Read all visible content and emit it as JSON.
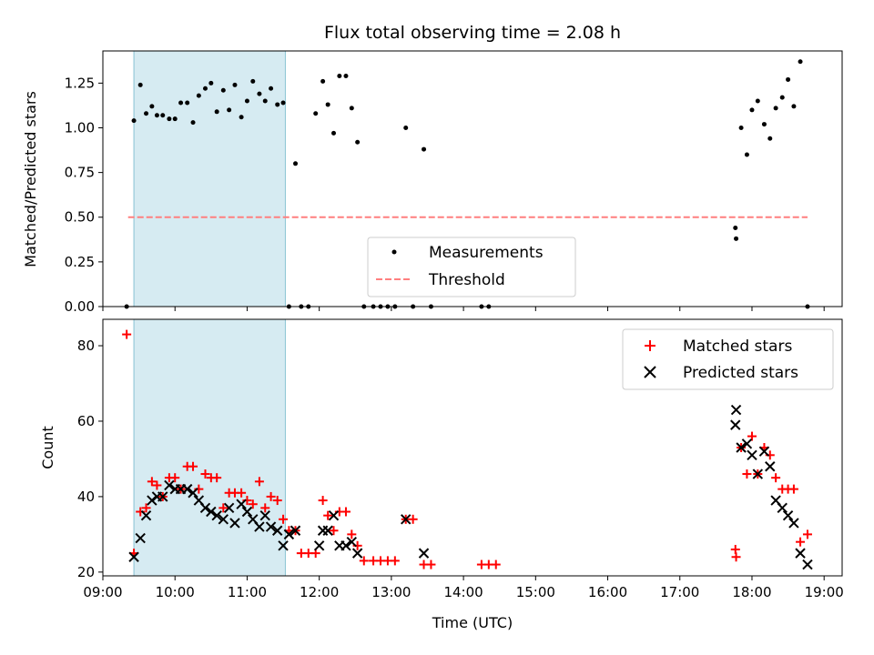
{
  "chart_data": [
    {
      "type": "scatter",
      "panel": "top",
      "title": "Flux total observing time = 2.08 h",
      "xlabel": "",
      "ylabel": "Matched/Predicted stars",
      "xlim": [
        9.0,
        19.25
      ],
      "ylim": [
        0.0,
        1.43
      ],
      "yticks": [
        0.0,
        0.25,
        0.5,
        0.75,
        1.0,
        1.25
      ],
      "ytick_labels": [
        "0.00",
        "0.25",
        "0.50",
        "0.75",
        "1.00",
        "1.25"
      ],
      "shaded_interval": [
        9.43,
        11.53
      ],
      "legend_position": "lower center",
      "series": [
        {
          "name": "Measurements",
          "marker": "dot",
          "color": "#000000",
          "points": [
            [
              9.33,
              0.0
            ],
            [
              9.43,
              1.04
            ],
            [
              9.52,
              1.24
            ],
            [
              9.6,
              1.08
            ],
            [
              9.68,
              1.12
            ],
            [
              9.75,
              1.07
            ],
            [
              9.83,
              1.07
            ],
            [
              9.92,
              1.05
            ],
            [
              10.0,
              1.05
            ],
            [
              10.08,
              1.14
            ],
            [
              10.17,
              1.14
            ],
            [
              10.25,
              1.03
            ],
            [
              10.33,
              1.18
            ],
            [
              10.42,
              1.22
            ],
            [
              10.5,
              1.25
            ],
            [
              10.58,
              1.09
            ],
            [
              10.67,
              1.21
            ],
            [
              10.75,
              1.1
            ],
            [
              10.83,
              1.24
            ],
            [
              10.92,
              1.06
            ],
            [
              11.0,
              1.15
            ],
            [
              11.08,
              1.26
            ],
            [
              11.17,
              1.19
            ],
            [
              11.25,
              1.15
            ],
            [
              11.33,
              1.22
            ],
            [
              11.42,
              1.13
            ],
            [
              11.5,
              1.14
            ],
            [
              11.58,
              0.0
            ],
            [
              11.67,
              0.8
            ],
            [
              11.75,
              0.0
            ],
            [
              11.85,
              0.0
            ],
            [
              11.95,
              1.08
            ],
            [
              12.05,
              1.26
            ],
            [
              12.12,
              1.13
            ],
            [
              12.2,
              0.97
            ],
            [
              12.28,
              1.29
            ],
            [
              12.37,
              1.29
            ],
            [
              12.45,
              1.11
            ],
            [
              12.53,
              0.92
            ],
            [
              12.62,
              0.0
            ],
            [
              12.75,
              0.0
            ],
            [
              12.85,
              0.0
            ],
            [
              12.95,
              0.0
            ],
            [
              13.05,
              0.0
            ],
            [
              13.2,
              1.0
            ],
            [
              13.3,
              0.0
            ],
            [
              13.45,
              0.88
            ],
            [
              13.55,
              0.0
            ],
            [
              14.25,
              0.0
            ],
            [
              14.35,
              0.0
            ],
            [
              17.77,
              0.44
            ],
            [
              17.78,
              0.38
            ],
            [
              17.85,
              1.0
            ],
            [
              17.93,
              0.85
            ],
            [
              18.0,
              1.1
            ],
            [
              18.08,
              1.15
            ],
            [
              18.17,
              1.02
            ],
            [
              18.25,
              0.94
            ],
            [
              18.33,
              1.11
            ],
            [
              18.42,
              1.17
            ],
            [
              18.5,
              1.27
            ],
            [
              18.58,
              1.12
            ],
            [
              18.67,
              1.37
            ],
            [
              18.77,
              0.0
            ]
          ]
        },
        {
          "name": "Threshold",
          "marker": "dashed-line",
          "color": "#ff7f7f",
          "x": [
            9.35,
            18.77
          ],
          "y": [
            0.5,
            0.5
          ]
        }
      ]
    },
    {
      "type": "scatter",
      "panel": "bottom",
      "title": "",
      "xlabel": "Time (UTC)",
      "ylabel": "Count",
      "xlim": [
        9.0,
        19.25
      ],
      "ylim": [
        19.0,
        87.0
      ],
      "yticks": [
        20,
        40,
        60,
        80
      ],
      "ytick_labels": [
        "20",
        "40",
        "60",
        "80"
      ],
      "xticks": [
        9,
        10,
        11,
        12,
        13,
        14,
        15,
        16,
        17,
        18,
        19
      ],
      "xtick_labels": [
        "09:00",
        "10:00",
        "11:00",
        "12:00",
        "13:00",
        "14:00",
        "15:00",
        "16:00",
        "17:00",
        "18:00",
        "19:00"
      ],
      "shaded_interval": [
        9.43,
        11.53
      ],
      "legend_position": "upper right",
      "series": [
        {
          "name": "Matched stars",
          "marker": "plus",
          "color": "#ff0000",
          "points": [
            [
              9.33,
              83
            ],
            [
              9.43,
              25
            ],
            [
              9.52,
              36
            ],
            [
              9.6,
              37
            ],
            [
              9.68,
              44
            ],
            [
              9.75,
              43
            ],
            [
              9.83,
              40
            ],
            [
              9.92,
              45
            ],
            [
              10.0,
              45
            ],
            [
              10.08,
              42
            ],
            [
              10.17,
              48
            ],
            [
              10.25,
              48
            ],
            [
              10.33,
              42
            ],
            [
              10.42,
              46
            ],
            [
              10.5,
              45
            ],
            [
              10.58,
              45
            ],
            [
              10.67,
              37
            ],
            [
              10.75,
              41
            ],
            [
              10.83,
              41
            ],
            [
              10.92,
              41
            ],
            [
              11.0,
              39
            ],
            [
              11.08,
              38
            ],
            [
              11.17,
              44
            ],
            [
              11.25,
              37
            ],
            [
              11.33,
              40
            ],
            [
              11.42,
              39
            ],
            [
              11.5,
              34
            ],
            [
              11.58,
              31
            ],
            [
              11.67,
              31
            ],
            [
              11.75,
              25
            ],
            [
              11.85,
              25
            ],
            [
              11.95,
              25
            ],
            [
              12.05,
              39
            ],
            [
              12.12,
              35
            ],
            [
              12.2,
              31
            ],
            [
              12.28,
              36
            ],
            [
              12.37,
              36
            ],
            [
              12.45,
              30
            ],
            [
              12.53,
              27
            ],
            [
              12.62,
              23
            ],
            [
              12.75,
              23
            ],
            [
              12.85,
              23
            ],
            [
              12.95,
              23
            ],
            [
              13.05,
              23
            ],
            [
              13.2,
              34
            ],
            [
              13.3,
              34
            ],
            [
              13.45,
              22
            ],
            [
              13.55,
              22
            ],
            [
              14.25,
              22
            ],
            [
              14.35,
              22
            ],
            [
              14.45,
              22
            ],
            [
              17.77,
              26
            ],
            [
              17.78,
              24
            ],
            [
              17.85,
              53
            ],
            [
              17.93,
              46
            ],
            [
              18.0,
              56
            ],
            [
              18.08,
              46
            ],
            [
              18.17,
              53
            ],
            [
              18.25,
              51
            ],
            [
              18.33,
              45
            ],
            [
              18.42,
              42
            ],
            [
              18.5,
              42
            ],
            [
              18.58,
              42
            ],
            [
              18.67,
              28
            ],
            [
              18.77,
              30
            ]
          ]
        },
        {
          "name": "Predicted stars",
          "marker": "cross",
          "color": "#000000",
          "points": [
            [
              9.43,
              24
            ],
            [
              9.52,
              29
            ],
            [
              9.6,
              35
            ],
            [
              9.68,
              39
            ],
            [
              9.75,
              40
            ],
            [
              9.83,
              40
            ],
            [
              9.92,
              43
            ],
            [
              10.0,
              42
            ],
            [
              10.08,
              42
            ],
            [
              10.17,
              42
            ],
            [
              10.25,
              41
            ],
            [
              10.33,
              39
            ],
            [
              10.42,
              37
            ],
            [
              10.5,
              36
            ],
            [
              10.58,
              35
            ],
            [
              10.67,
              34
            ],
            [
              10.75,
              37
            ],
            [
              10.83,
              33
            ],
            [
              10.92,
              38
            ],
            [
              11.0,
              36
            ],
            [
              11.08,
              34
            ],
            [
              11.17,
              32
            ],
            [
              11.25,
              35
            ],
            [
              11.33,
              32
            ],
            [
              11.42,
              31
            ],
            [
              11.5,
              27
            ],
            [
              11.58,
              30
            ],
            [
              11.67,
              31
            ],
            [
              12.0,
              27
            ],
            [
              12.05,
              31
            ],
            [
              12.12,
              31
            ],
            [
              12.2,
              35
            ],
            [
              12.28,
              27
            ],
            [
              12.37,
              27
            ],
            [
              12.45,
              28
            ],
            [
              12.53,
              25
            ],
            [
              13.2,
              34
            ],
            [
              13.45,
              25
            ],
            [
              17.77,
              59
            ],
            [
              17.78,
              63
            ],
            [
              17.85,
              53
            ],
            [
              17.93,
              54
            ],
            [
              18.0,
              51
            ],
            [
              18.08,
              46
            ],
            [
              18.17,
              52
            ],
            [
              18.25,
              48
            ],
            [
              18.33,
              39
            ],
            [
              18.42,
              37
            ],
            [
              18.5,
              35
            ],
            [
              18.58,
              33
            ],
            [
              18.67,
              25
            ],
            [
              18.77,
              22
            ]
          ]
        }
      ]
    }
  ]
}
